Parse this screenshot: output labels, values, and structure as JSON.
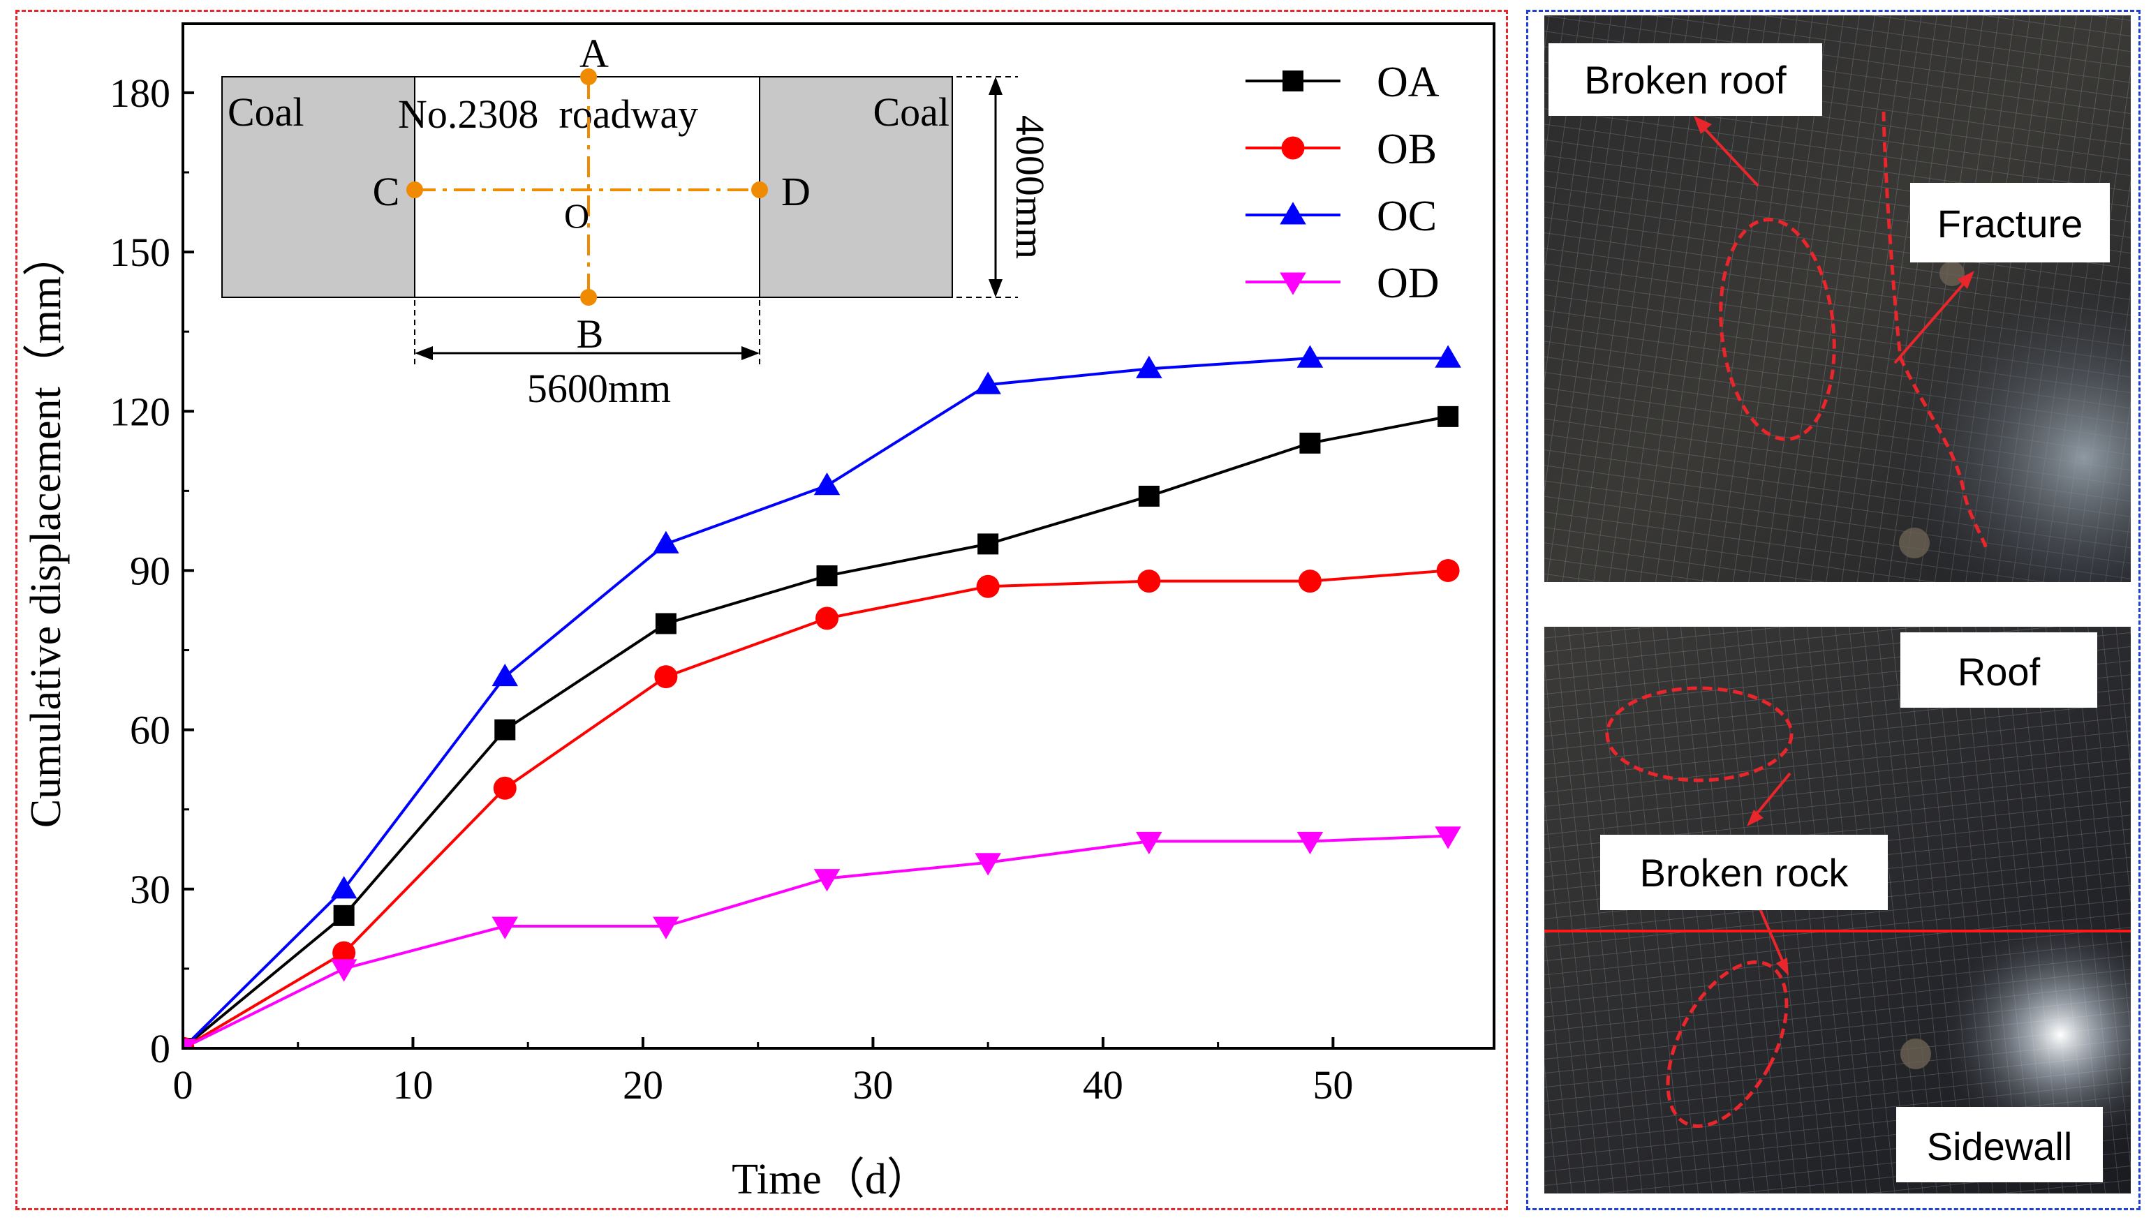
{
  "chart_data": {
    "type": "line",
    "xlabel": "Time（d）",
    "ylabel": "Cumulative displacement（mm）",
    "xlim": [
      0,
      57
    ],
    "ylim": [
      0,
      193
    ],
    "xticks": [
      "0",
      "10",
      "20",
      "30",
      "40",
      "50"
    ],
    "yticks": [
      "0",
      "30",
      "60",
      "90",
      "120",
      "150",
      "180"
    ],
    "x": [
      0,
      7,
      14,
      21,
      28,
      35,
      42,
      49,
      55
    ],
    "series": [
      {
        "name": "OA",
        "color": "#000000",
        "marker": "square",
        "values": [
          0,
          25,
          60,
          80,
          89,
          95,
          104,
          114,
          119
        ]
      },
      {
        "name": "OB",
        "color": "#ff0000",
        "marker": "circle",
        "values": [
          0,
          18,
          49,
          70,
          81,
          87,
          88,
          88,
          90
        ]
      },
      {
        "name": "OC",
        "color": "#0000ff",
        "marker": "triangle-up",
        "values": [
          0,
          30,
          70,
          95,
          106,
          125,
          128,
          130,
          130
        ]
      },
      {
        "name": "OD",
        "color": "#ff00ff",
        "marker": "triangle-down",
        "values": [
          0,
          15,
          23,
          23,
          32,
          35,
          39,
          39,
          40
        ]
      }
    ],
    "legend_position": "top-right"
  },
  "inset": {
    "coal_left": "Coal",
    "coal_right": "Coal",
    "roadway": "No.2308  roadway",
    "point_a": "A",
    "point_b": "B",
    "point_c": "C",
    "point_d": "D",
    "point_o": "O",
    "height_dim": "4000mm",
    "width_dim": "5600mm",
    "coal_fill": "#c8c8c8",
    "point_color": "#f08a00"
  },
  "photos": {
    "top": {
      "label_broken_roof": "Broken roof",
      "label_fracture": "Fracture"
    },
    "bottom": {
      "label_roof": "Roof",
      "label_broken_rock": "Broken rock",
      "label_sidewall": "Sidewall"
    },
    "annotation_color": "#e8262b"
  },
  "frames": {
    "left_color": "#e8262b",
    "right_color": "#1e3fd8"
  }
}
